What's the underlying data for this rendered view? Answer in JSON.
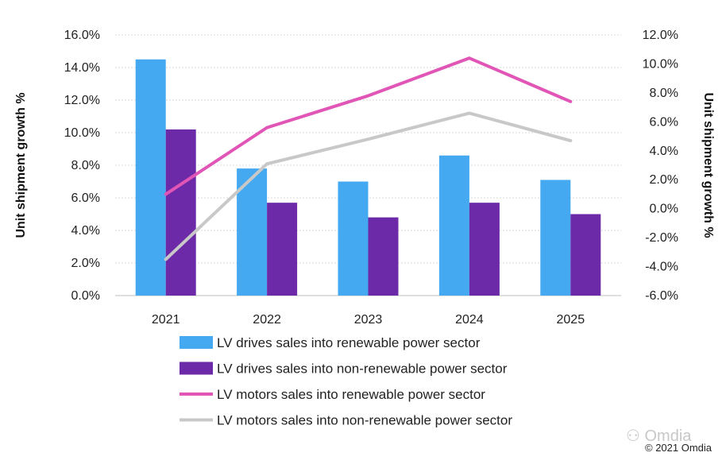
{
  "chart_data": {
    "type": "bar",
    "categories": [
      "2021",
      "2022",
      "2023",
      "2024",
      "2025"
    ],
    "series": [
      {
        "name": "LV drives sales into renewable power sector",
        "kind": "bar",
        "axis": "left",
        "color": "#44a9f1",
        "values": [
          14.5,
          7.8,
          7.0,
          8.6,
          7.1
        ]
      },
      {
        "name": "LV drives sales into non-renewable power sector",
        "kind": "bar",
        "axis": "left",
        "color": "#6d2aa8",
        "values": [
          10.2,
          5.7,
          4.8,
          5.7,
          5.0
        ]
      },
      {
        "name": "LV motors sales into renewable power sector",
        "kind": "line",
        "axis": "right",
        "color": "#e055b5",
        "values": [
          1.0,
          5.6,
          7.8,
          10.4,
          7.4
        ]
      },
      {
        "name": "LV motors sales into non-renewable power sector",
        "kind": "line",
        "axis": "right",
        "color": "#c8c8c8",
        "values": [
          -3.5,
          3.1,
          4.8,
          6.6,
          4.7
        ]
      }
    ],
    "ylabel": "Unit shipment growth %",
    "y2label": "Unit shipment growth %",
    "ylim": [
      0,
      16
    ],
    "y2lim": [
      -6,
      12
    ],
    "yticks": [
      "0.0%",
      "2.0%",
      "4.0%",
      "6.0%",
      "8.0%",
      "10.0%",
      "12.0%",
      "14.0%",
      "16.0%"
    ],
    "y2ticks": [
      "-6.0%",
      "-4.0%",
      "-2.0%",
      "0.0%",
      "2.0%",
      "4.0%",
      "6.0%",
      "8.0%",
      "10.0%",
      "12.0%"
    ],
    "grid": true,
    "legend_position": "bottom"
  },
  "watermark": "Omdia",
  "copyright": "© 2021 Omdia"
}
